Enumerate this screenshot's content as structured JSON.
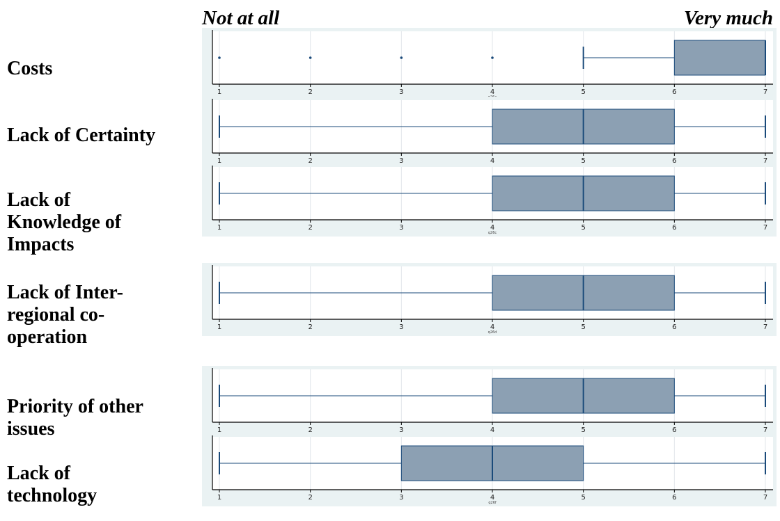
{
  "header": {
    "left_label": "Not at all",
    "right_label": "Very much"
  },
  "chart_data": {
    "type": "boxplot",
    "xlim": [
      1,
      7
    ],
    "x_ticks": [
      "1",
      "2",
      "3",
      "4",
      "5",
      "6",
      "7"
    ],
    "grid": true,
    "colors": {
      "box_fill": "#8ca0b3",
      "line": "#1a4a7a",
      "panel_bg": "#eaf2f3",
      "grid": "#e2e6ea"
    },
    "rows": [
      {
        "label": "Costs",
        "var": "q26a",
        "whisker_low": 5,
        "q1": 6,
        "median": 7,
        "q3": 7,
        "whisker_high": 7,
        "outliers": [
          1,
          2,
          3,
          4
        ]
      },
      {
        "label": "Lack of Certainty",
        "var": "q26b",
        "whisker_low": 1,
        "q1": 4,
        "median": 5,
        "q3": 6,
        "whisker_high": 7,
        "outliers": []
      },
      {
        "label": "Lack of\nKnowledge of\nImpacts",
        "var": "q26c",
        "whisker_low": 1,
        "q1": 4,
        "median": 5,
        "q3": 6,
        "whisker_high": 7,
        "outliers": []
      },
      {
        "label": "Lack of Inter-\nregional co-\noperation",
        "var": "q26d",
        "whisker_low": 1,
        "q1": 4,
        "median": 5,
        "q3": 6,
        "whisker_high": 7,
        "outliers": []
      },
      {
        "label": "Priority of other\nissues",
        "var": "q26e",
        "whisker_low": 1,
        "q1": 4,
        "median": 5,
        "q3": 6,
        "whisker_high": 7,
        "outliers": []
      },
      {
        "label": "Lack of\ntechnology",
        "var": "q26f",
        "whisker_low": 1,
        "q1": 3,
        "median": 4,
        "q3": 5,
        "whisker_high": 7,
        "outliers": []
      }
    ]
  }
}
